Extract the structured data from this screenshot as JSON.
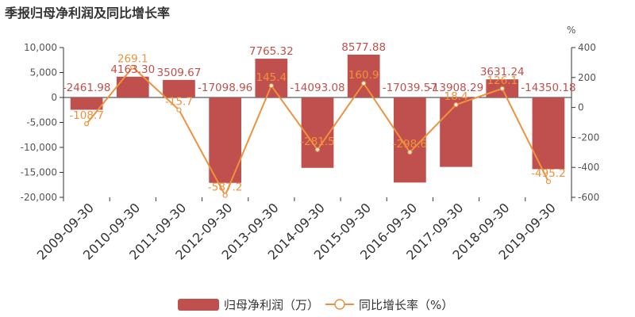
{
  "chart_data": {
    "type": "bar",
    "title": "季报归母净利润及同比增长率",
    "categories": [
      "2009-09-30",
      "2010-09-30",
      "2011-09-30",
      "2012-09-30",
      "2013-09-30",
      "2014-09-30",
      "2015-09-30",
      "2016-09-30",
      "2017-09-30",
      "2018-09-30",
      "2019-09-30"
    ],
    "series": [
      {
        "name": "归母净利润（万）",
        "type": "bar",
        "axis": "left",
        "color": "#c0504d",
        "values": [
          -2461.98,
          4163.3,
          3509.67,
          -17098.96,
          7765.32,
          -14093.08,
          8577.88,
          -17039.57,
          -13908.29,
          3631.24,
          -14350.18
        ],
        "labels": [
          "-2461.98",
          "4163.30",
          "3509.67",
          "-17098.96",
          "7765.32",
          "-14093.08",
          "8577.88",
          "-17039.57",
          "-13908.29",
          "3631.24",
          "-14350.18"
        ]
      },
      {
        "name": "同比增长率（%）",
        "type": "line",
        "axis": "right",
        "color": "#f0913b",
        "values": [
          -108.7,
          269.1,
          -15.7,
          -587.2,
          145.4,
          -281.5,
          160.9,
          -298.6,
          18.4,
          126.1,
          -495.2
        ],
        "labels": [
          "-108.7",
          "269.1",
          "-15.7",
          "-587.2",
          "145.4",
          "-281.5",
          "160.9",
          "-298.6",
          "18.4",
          "126.1",
          "-495.2"
        ]
      }
    ],
    "y_left": {
      "ylim": [
        -20000,
        10000
      ],
      "ticks": [
        10000,
        5000,
        0,
        -5000,
        -10000,
        -15000,
        -20000
      ],
      "tick_labels": [
        "10,000",
        "5,000",
        "0",
        "-5,000",
        "-10,000",
        "-15,000",
        "-20,000"
      ]
    },
    "y_right": {
      "label": "%",
      "ylim": [
        -600,
        400
      ],
      "ticks": [
        400,
        200,
        0,
        -200,
        -400,
        -600
      ],
      "tick_labels": [
        "400",
        "200",
        "0",
        "-200",
        "-400",
        "-600"
      ]
    },
    "grid": false,
    "legend": "bottom-center"
  }
}
